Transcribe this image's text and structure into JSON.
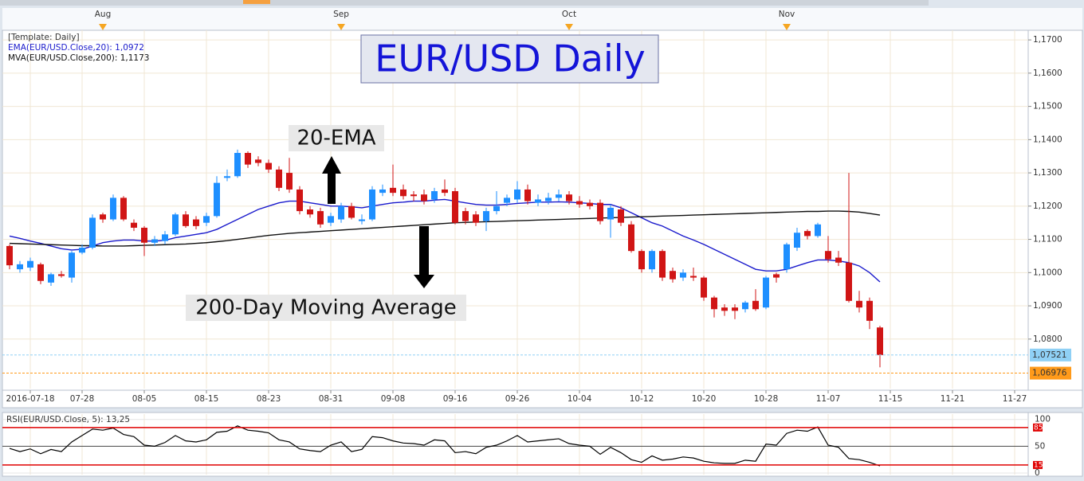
{
  "chart_data": {
    "type": "candlestick",
    "title": "EUR/USD Daily",
    "legend_header": "[Template: Daily]",
    "categories": [
      null,
      null,
      "2016-07-18",
      null,
      null,
      null,
      null,
      "07-28",
      null,
      null,
      null,
      null,
      null,
      "08-05",
      null,
      null,
      null,
      null,
      null,
      "08-15",
      null,
      null,
      null,
      null,
      null,
      "08-23",
      null,
      null,
      null,
      null,
      null,
      "08-31",
      null,
      null,
      null,
      null,
      null,
      "09-08",
      null,
      null,
      null,
      null,
      null,
      "09-16",
      null,
      null,
      null,
      null,
      null,
      "09-26",
      null,
      null,
      null,
      null,
      null,
      "10-04",
      null,
      null,
      null,
      null,
      null,
      "10-12",
      null,
      null,
      null,
      null,
      null,
      "10-20",
      null,
      null,
      null,
      null,
      null,
      "10-28",
      null,
      null,
      null,
      null,
      null,
      "11-07",
      null,
      null,
      null,
      null,
      null,
      "11-15",
      null,
      null,
      null,
      null,
      null,
      "11-21",
      null,
      null,
      null,
      null,
      null,
      "11-27"
    ],
    "month_labels": [
      null,
      null,
      null,
      null,
      null,
      null,
      null,
      null,
      null,
      "Aug",
      null,
      null,
      null,
      null,
      null,
      null,
      null,
      null,
      null,
      null,
      null,
      null,
      null,
      null,
      null,
      null,
      null,
      null,
      null,
      null,
      null,
      null,
      "Sep",
      null,
      null,
      null,
      null,
      null,
      null,
      null,
      null,
      null,
      null,
      null,
      null,
      null,
      null,
      null,
      null,
      null,
      null,
      null,
      null,
      null,
      "Oct",
      null,
      null,
      null,
      null,
      null,
      null,
      null,
      null,
      null,
      null,
      null,
      null,
      null,
      null,
      null,
      null,
      null,
      null,
      null,
      null,
      "Nov",
      null,
      null,
      null,
      null,
      null,
      null,
      null,
      null,
      null,
      null,
      null,
      null,
      null,
      null,
      null,
      null,
      null,
      null,
      null,
      null,
      null,
      null
    ],
    "open": [
      1.108,
      1.101,
      1.1015,
      1.1025,
      1.097,
      1.0995,
      1.0985,
      1.106,
      1.1075,
      1.1175,
      1.116,
      1.1225,
      1.115,
      1.1135,
      1.109,
      1.1095,
      1.1115,
      1.1175,
      1.116,
      1.115,
      1.117,
      1.1285,
      1.129,
      1.136,
      1.134,
      1.133,
      1.131,
      1.13,
      1.125,
      1.119,
      1.1185,
      1.115,
      1.116,
      1.12,
      1.1155,
      1.116,
      1.124,
      1.1255,
      1.125,
      1.1235,
      1.1235,
      1.122,
      1.125,
      1.1245,
      1.1185,
      1.1175,
      1.1155,
      1.1185,
      1.121,
      1.122,
      1.125,
      1.121,
      1.1215,
      1.1225,
      1.1235,
      1.1215,
      1.121,
      1.121,
      1.116,
      1.119,
      1.1145,
      1.1065,
      1.101,
      1.1065,
      1.1005,
      1.0985,
      1.099,
      1.0985,
      1.0925,
      1.0895,
      1.0895,
      1.089,
      1.0915,
      1.0895,
      1.0995,
      1.101,
      1.1075,
      1.1125,
      1.111,
      1.1065,
      1.1045,
      1.103,
      1.0915,
      1.0915,
      1.0835,
      null,
      null,
      null,
      null,
      null,
      null,
      null,
      null,
      null,
      null,
      null,
      null,
      null
    ],
    "high": [
      1.1085,
      1.1035,
      1.1045,
      1.103,
      1.1,
      1.1005,
      1.1065,
      1.1085,
      1.1175,
      1.118,
      1.1235,
      1.123,
      1.116,
      1.114,
      1.111,
      1.1125,
      1.118,
      1.1185,
      1.117,
      1.118,
      1.129,
      1.131,
      1.137,
      1.1365,
      1.135,
      1.134,
      1.132,
      1.1345,
      1.126,
      1.12,
      1.1195,
      1.118,
      1.121,
      1.121,
      1.1175,
      1.126,
      1.1265,
      1.1325,
      1.1265,
      1.1245,
      1.125,
      1.1255,
      1.128,
      1.1255,
      1.1195,
      1.1185,
      1.1195,
      1.1245,
      1.1235,
      1.1275,
      1.1265,
      1.1235,
      1.124,
      1.125,
      1.1245,
      1.123,
      1.122,
      1.122,
      1.1205,
      1.12,
      1.1155,
      1.107,
      1.107,
      1.107,
      1.1015,
      1.101,
      1.1015,
      1.099,
      1.093,
      1.0905,
      1.0905,
      1.0915,
      1.095,
      1.099,
      1.1,
      1.109,
      1.1135,
      1.113,
      1.115,
      1.111,
      1.1065,
      1.13,
      1.0945,
      1.0925,
      1.084,
      null,
      null,
      null,
      null,
      null,
      null,
      null,
      null,
      null,
      null,
      null,
      null,
      null
    ],
    "low": [
      1.101,
      1.1,
      1.1005,
      1.0965,
      1.096,
      1.0985,
      1.097,
      1.1055,
      1.107,
      1.115,
      1.1155,
      1.1155,
      1.1125,
      1.105,
      1.108,
      1.1085,
      1.111,
      1.1135,
      1.113,
      1.114,
      1.1165,
      1.1275,
      1.1285,
      1.1315,
      1.132,
      1.13,
      1.1245,
      1.124,
      1.1175,
      1.1165,
      1.1135,
      1.114,
      1.115,
      1.116,
      1.1145,
      1.1155,
      1.123,
      1.123,
      1.122,
      1.1215,
      1.1205,
      1.121,
      1.123,
      1.1145,
      1.1145,
      1.114,
      1.1125,
      1.1175,
      1.12,
      1.121,
      1.1205,
      1.12,
      1.1205,
      1.1215,
      1.1205,
      1.1195,
      1.119,
      1.1145,
      1.1105,
      1.114,
      1.106,
      1.1,
      1.1,
      1.0975,
      1.097,
      1.0975,
      1.0975,
      1.0915,
      1.0865,
      1.087,
      1.086,
      1.088,
      1.0885,
      1.089,
      1.097,
      1.1,
      1.1065,
      1.11,
      1.1105,
      1.103,
      1.102,
      1.091,
      1.088,
      1.083,
      1.0715,
      null,
      null,
      null,
      null,
      null,
      null,
      null,
      null,
      null,
      null,
      null,
      null,
      null
    ],
    "close": [
      1.1022,
      1.1025,
      1.1035,
      1.0975,
      1.0995,
      1.099,
      1.106,
      1.1075,
      1.1165,
      1.116,
      1.1225,
      1.116,
      1.1135,
      1.109,
      1.11,
      1.1115,
      1.1175,
      1.114,
      1.114,
      1.117,
      1.127,
      1.129,
      1.136,
      1.1325,
      1.133,
      1.131,
      1.1255,
      1.125,
      1.1185,
      1.1175,
      1.1145,
      1.117,
      1.12,
      1.1165,
      1.116,
      1.125,
      1.125,
      1.124,
      1.123,
      1.123,
      1.1215,
      1.1245,
      1.124,
      1.115,
      1.1155,
      1.115,
      1.1185,
      1.12,
      1.1225,
      1.125,
      1.1215,
      1.122,
      1.1225,
      1.1235,
      1.1215,
      1.1205,
      1.12,
      1.1155,
      1.1195,
      1.115,
      1.1065,
      1.101,
      1.1065,
      1.0985,
      1.098,
      1.1,
      1.0985,
      1.0925,
      1.089,
      1.0885,
      1.0885,
      1.091,
      1.089,
      1.0985,
      1.0985,
      1.1085,
      1.112,
      1.111,
      1.1145,
      1.104,
      1.103,
      1.0915,
      1.0895,
      1.0855,
      1.0752,
      null,
      null,
      null,
      null,
      null,
      null,
      null,
      null,
      null,
      null,
      null,
      null,
      null
    ],
    "up_color": "#1e8fff",
    "down_color": "#d01515",
    "series": [
      {
        "name": "EMA(EUR/USD.Close,20): 1,0972",
        "color": "#1a1acc",
        "values": [
          1.111,
          1.1103,
          1.1095,
          1.1088,
          1.108,
          1.1072,
          1.1068,
          1.107,
          1.108,
          1.109,
          1.1095,
          1.1098,
          1.1098,
          1.1095,
          1.1095,
          1.1097,
          1.1105,
          1.111,
          1.1115,
          1.112,
          1.113,
          1.1145,
          1.116,
          1.1175,
          1.119,
          1.12,
          1.121,
          1.1215,
          1.1215,
          1.121,
          1.1205,
          1.12,
          1.12,
          1.1198,
          1.1195,
          1.12,
          1.1205,
          1.121,
          1.1212,
          1.1215,
          1.1215,
          1.1218,
          1.122,
          1.1215,
          1.121,
          1.1205,
          1.1203,
          1.1203,
          1.1205,
          1.1208,
          1.121,
          1.1212,
          1.1212,
          1.1213,
          1.1212,
          1.121,
          1.1208,
          1.1205,
          1.1205,
          1.1195,
          1.118,
          1.1165,
          1.115,
          1.114,
          1.1125,
          1.111,
          1.1098,
          1.1085,
          1.107,
          1.1055,
          1.104,
          1.1025,
          1.101,
          1.1005,
          1.1005,
          1.101,
          1.102,
          1.103,
          1.1038,
          1.1038,
          1.1035,
          1.103,
          1.102,
          1.1,
          1.0972,
          null,
          null,
          null,
          null,
          null,
          null,
          null,
          null,
          null,
          null,
          null,
          null,
          null
        ]
      },
      {
        "name": "MVA(EUR/USD.Close,200): 1,1173",
        "color": "#111111",
        "values": [
          1.1088,
          1.1087,
          1.1086,
          1.1085,
          1.1084,
          1.1083,
          1.1082,
          1.1081,
          1.1081,
          1.108,
          1.108,
          1.108,
          1.1081,
          1.1082,
          1.1083,
          1.1084,
          1.1085,
          1.1086,
          1.1088,
          1.109,
          1.1093,
          1.1096,
          1.11,
          1.1104,
          1.1108,
          1.1112,
          1.1115,
          1.1118,
          1.112,
          1.1122,
          1.1124,
          1.1126,
          1.1128,
          1.113,
          1.1132,
          1.1134,
          1.1136,
          1.1138,
          1.114,
          1.1142,
          1.1144,
          1.1146,
          1.1148,
          1.115,
          1.1151,
          1.1152,
          1.1153,
          1.1154,
          1.1155,
          1.1156,
          1.1157,
          1.1158,
          1.1159,
          1.116,
          1.1161,
          1.1162,
          1.1163,
          1.1164,
          1.1165,
          1.1166,
          1.1167,
          1.1168,
          1.1169,
          1.117,
          1.1171,
          1.1172,
          1.1173,
          1.1174,
          1.1175,
          1.1176,
          1.1177,
          1.1178,
          1.1179,
          1.118,
          1.1181,
          1.1182,
          1.1183,
          1.1184,
          1.1184,
          1.1185,
          1.1185,
          1.1184,
          1.1182,
          1.1178,
          1.1173,
          null,
          null,
          null,
          null,
          null,
          null,
          null,
          null,
          null,
          null,
          null,
          null,
          null
        ]
      }
    ],
    "ylim": [
      1.0651,
      1.1729
    ],
    "yticks": [
      {
        "value": 1.08,
        "label": "1,0800"
      },
      {
        "value": 1.09,
        "label": "1,0900"
      },
      {
        "value": 1.1,
        "label": "1,1000"
      },
      {
        "value": 1.11,
        "label": "1,1100"
      },
      {
        "value": 1.12,
        "label": "1,1200"
      },
      {
        "value": 1.13,
        "label": "1,1300"
      },
      {
        "value": 1.14,
        "label": "1,1400"
      },
      {
        "value": 1.15,
        "label": "1,1500"
      },
      {
        "value": 1.16,
        "label": "1,1600"
      },
      {
        "value": 1.17,
        "label": "1,1700"
      }
    ],
    "grid": true,
    "price_markers": [
      {
        "value": 1.07521,
        "label": "1,07521",
        "color": "#8fd0f5"
      },
      {
        "value": 1.06976,
        "label": "1,06976",
        "color": "#ff9a1a"
      }
    ],
    "annotations": [
      "20-EMA",
      "200-Day Moving Average"
    ],
    "rsi": {
      "title": "RSI(EUR/USD.Close, 5): 13,25",
      "color": "#000000",
      "values": [
        46,
        40,
        45,
        36,
        44,
        40,
        58,
        70,
        82,
        80,
        84,
        72,
        68,
        52,
        50,
        57,
        70,
        60,
        58,
        62,
        76,
        78,
        88,
        80,
        78,
        75,
        62,
        58,
        45,
        42,
        40,
        52,
        58,
        40,
        44,
        68,
        66,
        60,
        56,
        55,
        52,
        62,
        60,
        38,
        40,
        36,
        48,
        52,
        60,
        70,
        58,
        60,
        62,
        64,
        55,
        52,
        50,
        35,
        48,
        38,
        25,
        20,
        32,
        24,
        26,
        30,
        28,
        22,
        19,
        18,
        18,
        24,
        22,
        54,
        52,
        74,
        80,
        78,
        86,
        52,
        48,
        27,
        25,
        20,
        13.25,
        null,
        null,
        null,
        null,
        null,
        null,
        null,
        null,
        null,
        null,
        null,
        null,
        null
      ],
      "ylim": [
        -3,
        110
      ],
      "yticks": [
        0,
        50,
        100
      ],
      "levels": [
        15,
        85
      ],
      "level_color": "#e00000"
    }
  }
}
